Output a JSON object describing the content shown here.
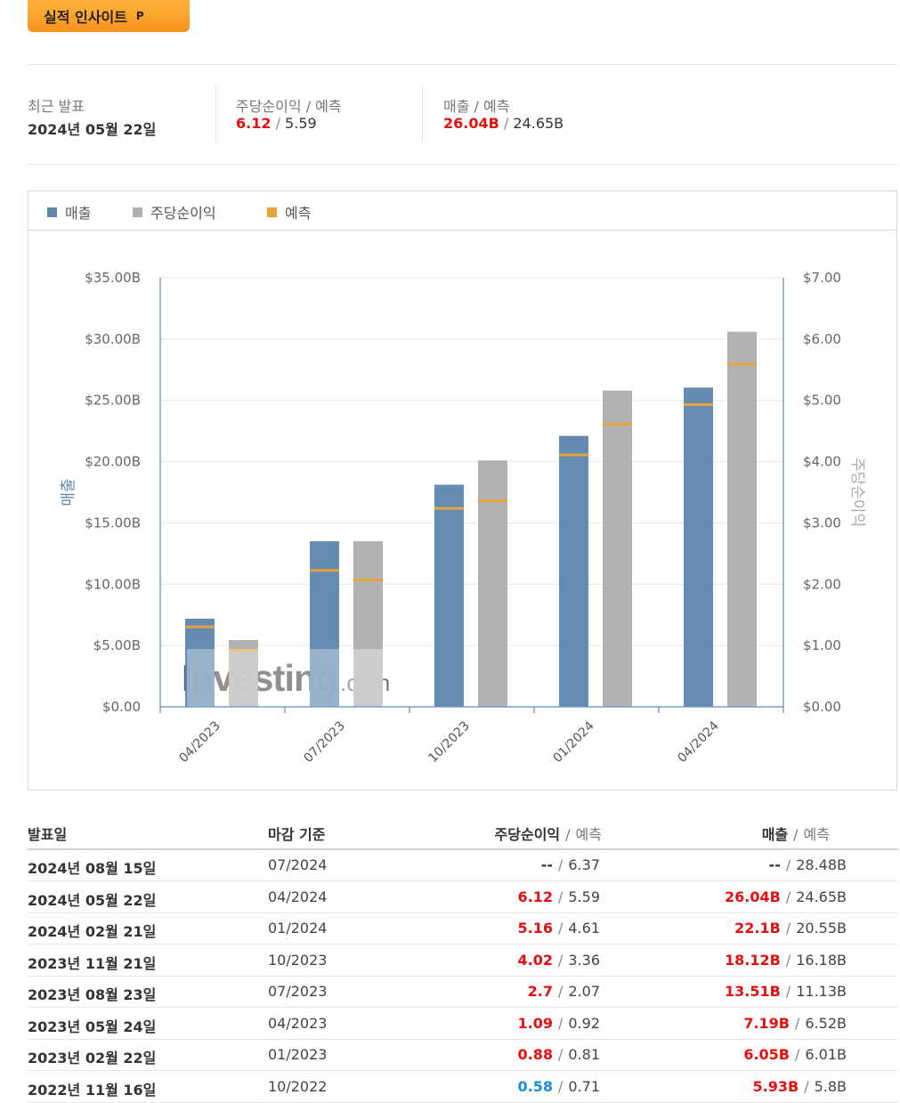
{
  "insight_button": {
    "label": "실적 인사이트",
    "badge": "P"
  },
  "summary": {
    "recent": {
      "label": "최근 발표",
      "value": "2024년 05월 22일"
    },
    "eps": {
      "label": "주당순이익",
      "forecast_label": "예측",
      "actual": "6.12",
      "forecast": "5.59"
    },
    "revenue": {
      "label": "매출",
      "forecast_label": "예측",
      "actual": "26.04B",
      "forecast": "24.65B"
    }
  },
  "legend": [
    {
      "label": "매출",
      "color": "#5f87b0"
    },
    {
      "label": "주당순이익",
      "color": "#b0b0b0"
    },
    {
      "label": "예측",
      "color": "#e8a33a"
    }
  ],
  "chart_data": {
    "type": "bar",
    "categories": [
      "04/2023",
      "07/2023",
      "10/2023",
      "01/2024",
      "04/2024"
    ],
    "series": [
      {
        "name": "매출",
        "axis": "left",
        "color": "#5f87b0",
        "values": [
          7.19,
          13.51,
          18.12,
          22.1,
          26.04
        ],
        "forecast": [
          6.52,
          11.13,
          16.18,
          20.55,
          24.65
        ]
      },
      {
        "name": "주당순이익",
        "axis": "right",
        "color": "#b0b0b0",
        "values": [
          1.09,
          2.7,
          4.02,
          5.16,
          6.12
        ],
        "forecast": [
          0.92,
          2.07,
          3.36,
          4.61,
          5.59
        ]
      }
    ],
    "forecast_color": "#e8a33a",
    "ylabel_left": "매출",
    "ylabel_right": "주당순이익",
    "ylim_left": [
      0,
      35
    ],
    "ylim_right": [
      0,
      7
    ],
    "y_ticks_left": [
      "$0.00",
      "$5.00B",
      "$10.00B",
      "$15.00B",
      "$20.00B",
      "$25.00B",
      "$30.00B",
      "$35.00B"
    ],
    "y_ticks_right": [
      "$0.00",
      "$1.00",
      "$2.00",
      "$3.00",
      "$4.00",
      "$5.00",
      "$6.00",
      "$7.00"
    ],
    "grid": true,
    "watermark": "Investing.com"
  },
  "table": {
    "headers": {
      "date": "발표일",
      "period": "마감 기준",
      "eps": "주당순이익",
      "eps_forecast": "예측",
      "revenue": "매출",
      "revenue_forecast": "예측"
    },
    "rows": [
      {
        "date": "2024년 08월 15일",
        "period": "07/2024",
        "eps": "--",
        "eps_forecast": "6.37",
        "eps_state": "dash",
        "revenue": "--",
        "revenue_forecast": "28.48B",
        "revenue_state": "dash"
      },
      {
        "date": "2024년 05월 22일",
        "period": "04/2024",
        "eps": "6.12",
        "eps_forecast": "5.59",
        "eps_state": "red",
        "revenue": "26.04B",
        "revenue_forecast": "24.65B",
        "revenue_state": "red"
      },
      {
        "date": "2024년 02월 21일",
        "period": "01/2024",
        "eps": "5.16",
        "eps_forecast": "4.61",
        "eps_state": "red",
        "revenue": "22.1B",
        "revenue_forecast": "20.55B",
        "revenue_state": "red"
      },
      {
        "date": "2023년 11월 21일",
        "period": "10/2023",
        "eps": "4.02",
        "eps_forecast": "3.36",
        "eps_state": "red",
        "revenue": "18.12B",
        "revenue_forecast": "16.18B",
        "revenue_state": "red"
      },
      {
        "date": "2023년 08월 23일",
        "period": "07/2023",
        "eps": "2.7",
        "eps_forecast": "2.07",
        "eps_state": "red",
        "revenue": "13.51B",
        "revenue_forecast": "11.13B",
        "revenue_state": "red"
      },
      {
        "date": "2023년 05월 24일",
        "period": "04/2023",
        "eps": "1.09",
        "eps_forecast": "0.92",
        "eps_state": "red",
        "revenue": "7.19B",
        "revenue_forecast": "6.52B",
        "revenue_state": "red"
      },
      {
        "date": "2023년 02월 22일",
        "period": "01/2023",
        "eps": "0.88",
        "eps_forecast": "0.81",
        "eps_state": "red",
        "revenue": "6.05B",
        "revenue_forecast": "6.01B",
        "revenue_state": "red"
      },
      {
        "date": "2022년 11월 16일",
        "period": "10/2022",
        "eps": "0.58",
        "eps_forecast": "0.71",
        "eps_state": "blue",
        "revenue": "5.93B",
        "revenue_forecast": "5.8B",
        "revenue_state": "red"
      }
    ]
  }
}
